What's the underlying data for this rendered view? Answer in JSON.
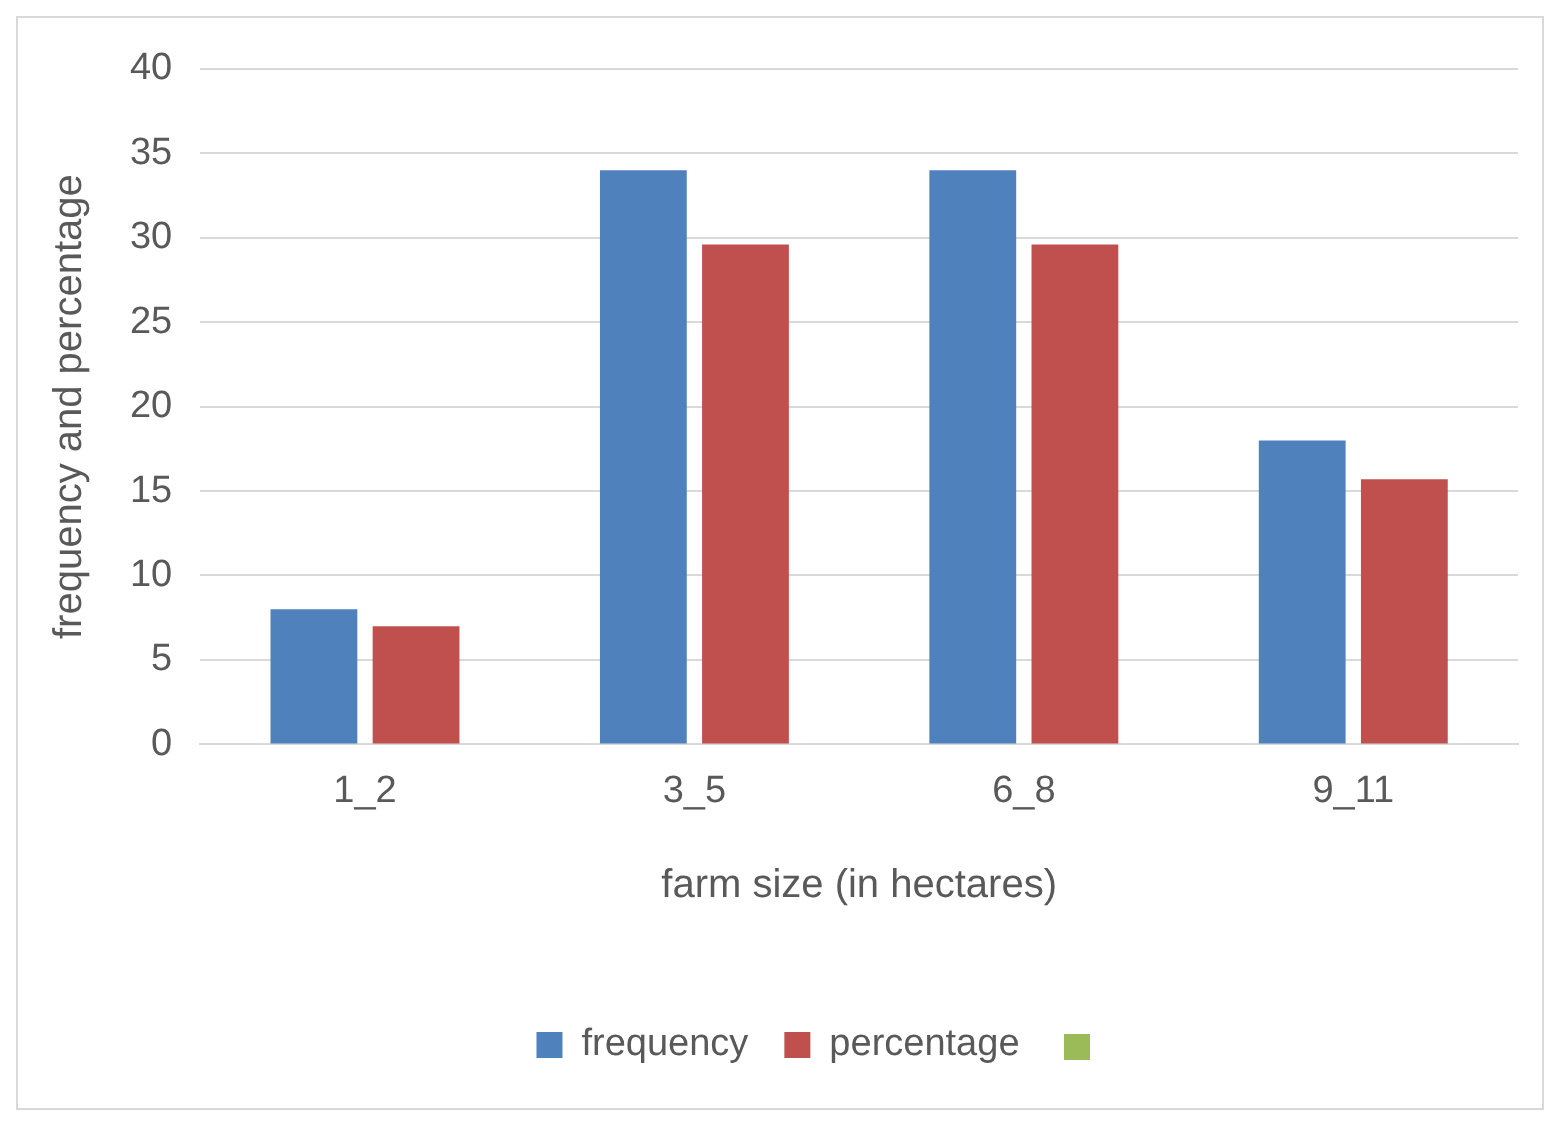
{
  "chart_data": {
    "type": "bar",
    "xlabel": "farm size (in hectares)",
    "ylabel": "frequency and percentage",
    "categories": [
      "1_2",
      "3_5",
      "6_8",
      "9_11"
    ],
    "series": [
      {
        "name": "frequency",
        "color": "#4f81bd",
        "values": [
          8,
          34,
          34,
          18
        ]
      },
      {
        "name": "percentage",
        "color": "#c0504d",
        "values": [
          7,
          29.6,
          29.6,
          15.7
        ]
      }
    ],
    "ylim": [
      0,
      40
    ],
    "yticks": [
      0,
      5,
      10,
      15,
      20,
      25,
      30,
      35,
      40
    ],
    "grid": "y",
    "legend": "bottom"
  }
}
